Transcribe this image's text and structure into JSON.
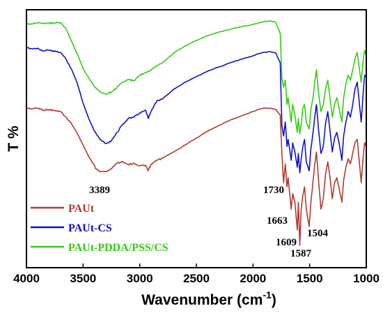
{
  "chart_data": {
    "type": "line",
    "xlabel": "Wavenumber (cm",
    "xlabel_superscript": "-1",
    "xlabel_suffix": ")",
    "ylabel": "T %",
    "xlim": [
      4000,
      1000
    ],
    "x_reversed": true,
    "x_ticks": [
      4000,
      3500,
      3000,
      2500,
      2000,
      1500,
      1000
    ],
    "y_ticks_shown": false,
    "grid": false,
    "legend_position": "bottom-left",
    "series": [
      {
        "name": "PAUt",
        "color": "#b03a2e",
        "points": [
          [
            4000,
            155
          ],
          [
            3950,
            156
          ],
          [
            3900,
            155
          ],
          [
            3850,
            158
          ],
          [
            3800,
            157
          ],
          [
            3750,
            159
          ],
          [
            3700,
            160
          ],
          [
            3650,
            168
          ],
          [
            3600,
            178
          ],
          [
            3550,
            192
          ],
          [
            3500,
            208
          ],
          [
            3450,
            225
          ],
          [
            3400,
            237
          ],
          [
            3389,
            242
          ],
          [
            3350,
            246
          ],
          [
            3300,
            246
          ],
          [
            3250,
            242
          ],
          [
            3200,
            234
          ],
          [
            3150,
            232
          ],
          [
            3100,
            236
          ],
          [
            3050,
            234
          ],
          [
            3000,
            238
          ],
          [
            2950,
            237
          ],
          [
            2925,
            245
          ],
          [
            2900,
            236
          ],
          [
            2850,
            230
          ],
          [
            2800,
            227
          ],
          [
            2700,
            218
          ],
          [
            2600,
            208
          ],
          [
            2500,
            198
          ],
          [
            2400,
            188
          ],
          [
            2300,
            180
          ],
          [
            2200,
            172
          ],
          [
            2100,
            166
          ],
          [
            2000,
            160
          ],
          [
            1950,
            157
          ],
          [
            1900,
            155
          ],
          [
            1850,
            155
          ],
          [
            1800,
            157
          ],
          [
            1760,
            165
          ],
          [
            1745,
            220
          ],
          [
            1730,
            262
          ],
          [
            1715,
            235
          ],
          [
            1700,
            268
          ],
          [
            1690,
            255
          ],
          [
            1663,
            300
          ],
          [
            1650,
            278
          ],
          [
            1630,
            290
          ],
          [
            1609,
            330
          ],
          [
            1600,
            290
          ],
          [
            1587,
            352
          ],
          [
            1575,
            300
          ],
          [
            1560,
            280
          ],
          [
            1545,
            268
          ],
          [
            1530,
            300
          ],
          [
            1504,
            325
          ],
          [
            1490,
            292
          ],
          [
            1470,
            260
          ],
          [
            1455,
            236
          ],
          [
            1440,
            218
          ],
          [
            1420,
            262
          ],
          [
            1400,
            300
          ],
          [
            1380,
            285
          ],
          [
            1360,
            250
          ],
          [
            1340,
            232
          ],
          [
            1320,
            255
          ],
          [
            1300,
            285
          ],
          [
            1280,
            262
          ],
          [
            1260,
            255
          ],
          [
            1240,
            270
          ],
          [
            1215,
            290
          ],
          [
            1200,
            258
          ],
          [
            1180,
            240
          ],
          [
            1160,
            228
          ],
          [
            1140,
            235
          ],
          [
            1120,
            220
          ],
          [
            1100,
            205
          ],
          [
            1080,
            200
          ],
          [
            1060,
            235
          ],
          [
            1045,
            262
          ],
          [
            1030,
            230
          ],
          [
            1015,
            205
          ],
          [
            1000,
            210
          ]
        ]
      },
      {
        "name": "PAUt-CS",
        "color": "#1010cc",
        "points": [
          [
            4000,
            68
          ],
          [
            3950,
            70
          ],
          [
            3900,
            69
          ],
          [
            3850,
            73
          ],
          [
            3800,
            72
          ],
          [
            3750,
            74
          ],
          [
            3700,
            75
          ],
          [
            3650,
            85
          ],
          [
            3600,
            100
          ],
          [
            3550,
            120
          ],
          [
            3500,
            148
          ],
          [
            3450,
            170
          ],
          [
            3400,
            188
          ],
          [
            3350,
            200
          ],
          [
            3300,
            206
          ],
          [
            3250,
            202
          ],
          [
            3200,
            190
          ],
          [
            3150,
            178
          ],
          [
            3100,
            170
          ],
          [
            3050,
            168
          ],
          [
            3000,
            162
          ],
          [
            2950,
            158
          ],
          [
            2925,
            170
          ],
          [
            2900,
            160
          ],
          [
            2850,
            145
          ],
          [
            2800,
            142
          ],
          [
            2700,
            128
          ],
          [
            2600,
            118
          ],
          [
            2500,
            110
          ],
          [
            2400,
            102
          ],
          [
            2300,
            96
          ],
          [
            2200,
            90
          ],
          [
            2100,
            85
          ],
          [
            2000,
            80
          ],
          [
            1950,
            77
          ],
          [
            1900,
            75
          ],
          [
            1850,
            74
          ],
          [
            1800,
            76
          ],
          [
            1760,
            90
          ],
          [
            1745,
            180
          ],
          [
            1730,
            195
          ],
          [
            1715,
            175
          ],
          [
            1700,
            210
          ],
          [
            1690,
            200
          ],
          [
            1663,
            230
          ],
          [
            1650,
            205
          ],
          [
            1630,
            218
          ],
          [
            1609,
            240
          ],
          [
            1600,
            220
          ],
          [
            1587,
            248
          ],
          [
            1575,
            228
          ],
          [
            1560,
            210
          ],
          [
            1545,
            200
          ],
          [
            1530,
            232
          ],
          [
            1504,
            245
          ],
          [
            1490,
            215
          ],
          [
            1470,
            190
          ],
          [
            1455,
            168
          ],
          [
            1440,
            150
          ],
          [
            1420,
            188
          ],
          [
            1400,
            220
          ],
          [
            1380,
            210
          ],
          [
            1360,
            178
          ],
          [
            1340,
            160
          ],
          [
            1320,
            188
          ],
          [
            1300,
            218
          ],
          [
            1280,
            198
          ],
          [
            1260,
            190
          ],
          [
            1240,
            205
          ],
          [
            1215,
            230
          ],
          [
            1200,
            195
          ],
          [
            1180,
            175
          ],
          [
            1160,
            160
          ],
          [
            1140,
            168
          ],
          [
            1120,
            150
          ],
          [
            1100,
            128
          ],
          [
            1080,
            118
          ],
          [
            1060,
            150
          ],
          [
            1045,
            175
          ],
          [
            1030,
            140
          ],
          [
            1015,
            108
          ],
          [
            1000,
            110
          ]
        ]
      },
      {
        "name": "PAUt-PDDA/PSS/CS",
        "color": "#33cc11",
        "points": [
          [
            4000,
            34
          ],
          [
            3950,
            34
          ],
          [
            3900,
            33
          ],
          [
            3850,
            34
          ],
          [
            3800,
            33
          ],
          [
            3750,
            33
          ],
          [
            3700,
            32
          ],
          [
            3650,
            42
          ],
          [
            3600,
            60
          ],
          [
            3550,
            78
          ],
          [
            3500,
            98
          ],
          [
            3450,
            112
          ],
          [
            3400,
            124
          ],
          [
            3350,
            132
          ],
          [
            3300,
            135
          ],
          [
            3250,
            132
          ],
          [
            3200,
            125
          ],
          [
            3150,
            118
          ],
          [
            3100,
            114
          ],
          [
            3050,
            116
          ],
          [
            3000,
            108
          ],
          [
            2950,
            104
          ],
          [
            2900,
            100
          ],
          [
            2850,
            94
          ],
          [
            2800,
            90
          ],
          [
            2700,
            76
          ],
          [
            2600,
            66
          ],
          [
            2500,
            58
          ],
          [
            2400,
            51
          ],
          [
            2300,
            46
          ],
          [
            2200,
            42
          ],
          [
            2100,
            38
          ],
          [
            2000,
            35
          ],
          [
            1950,
            33
          ],
          [
            1900,
            31
          ],
          [
            1850,
            30
          ],
          [
            1800,
            32
          ],
          [
            1760,
            48
          ],
          [
            1745,
            112
          ],
          [
            1730,
            125
          ],
          [
            1715,
            115
          ],
          [
            1700,
            150
          ],
          [
            1690,
            140
          ],
          [
            1663,
            175
          ],
          [
            1650,
            150
          ],
          [
            1630,
            165
          ],
          [
            1609,
            190
          ],
          [
            1600,
            170
          ],
          [
            1587,
            192
          ],
          [
            1575,
            178
          ],
          [
            1560,
            155
          ],
          [
            1545,
            150
          ],
          [
            1530,
            175
          ],
          [
            1504,
            185
          ],
          [
            1490,
            158
          ],
          [
            1470,
            140
          ],
          [
            1455,
            118
          ],
          [
            1440,
            100
          ],
          [
            1420,
            135
          ],
          [
            1400,
            160
          ],
          [
            1380,
            150
          ],
          [
            1360,
            128
          ],
          [
            1340,
            115
          ],
          [
            1320,
            140
          ],
          [
            1300,
            168
          ],
          [
            1280,
            150
          ],
          [
            1260,
            140
          ],
          [
            1240,
            155
          ],
          [
            1215,
            175
          ],
          [
            1200,
            140
          ],
          [
            1180,
            120
          ],
          [
            1160,
            108
          ],
          [
            1140,
            115
          ],
          [
            1120,
            100
          ],
          [
            1100,
            85
          ],
          [
            1080,
            75
          ],
          [
            1060,
            100
          ],
          [
            1045,
            118
          ],
          [
            1030,
            90
          ],
          [
            1015,
            72
          ],
          [
            1000,
            80
          ]
        ]
      }
    ],
    "annotations": [
      {
        "text": "3389",
        "x": 3389
      },
      {
        "text": "1730",
        "x": 1730
      },
      {
        "text": "1663",
        "x": 1663
      },
      {
        "text": "1609",
        "x": 1609
      },
      {
        "text": "1504",
        "x": 1504
      },
      {
        "text": "1587",
        "x": 1587
      }
    ]
  }
}
